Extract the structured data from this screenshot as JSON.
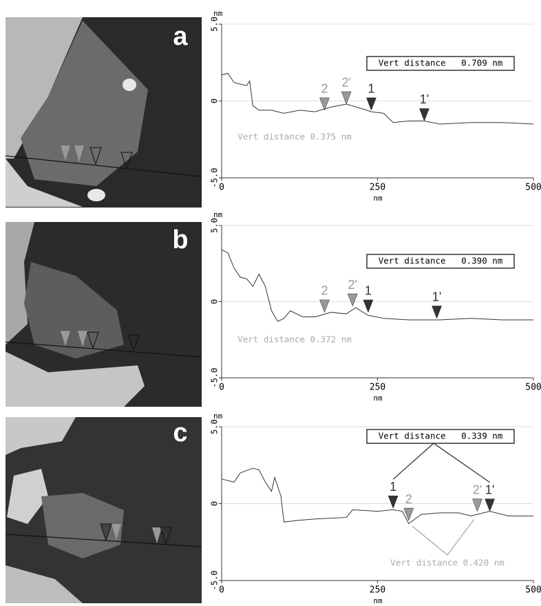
{
  "image_labels": [
    "a",
    "b",
    "c"
  ],
  "chart_data": [
    {
      "type": "line",
      "x_label": "nm",
      "y_label": "nm",
      "xlim": [
        0,
        500
      ],
      "ylim": [
        -5,
        5
      ],
      "xticks": [
        0,
        250,
        500
      ],
      "yticks": [
        {
          "value": -5,
          "label": "-5.0"
        },
        0,
        {
          "value": 5,
          "label": "5.0"
        }
      ],
      "grid": true,
      "color": "#333333",
      "x": [
        0,
        10,
        20,
        30,
        40,
        45,
        50,
        60,
        80,
        100,
        125,
        150,
        175,
        200,
        225,
        240,
        260,
        275,
        300,
        325,
        350,
        400,
        450,
        500
      ],
      "values": [
        1.7,
        1.8,
        1.2,
        1.1,
        1.0,
        1.3,
        -0.3,
        -0.6,
        -0.6,
        -0.8,
        -0.6,
        -0.7,
        -0.4,
        -0.2,
        -0.5,
        -0.7,
        -0.8,
        -1.4,
        -1.3,
        -1.3,
        -1.5,
        -1.4,
        -1.4,
        -1.5
      ],
      "markers": [
        {
          "label": "2",
          "x": 165,
          "y": -0.6,
          "color": "#999999"
        },
        {
          "label": "2'",
          "x": 200,
          "y": -0.2,
          "color": "#999999"
        },
        {
          "label": "1",
          "x": 240,
          "y": -0.6,
          "color": "#333333"
        },
        {
          "label": "1'",
          "x": 325,
          "y": -1.3,
          "color": "#333333"
        }
      ],
      "annotations": [
        "Vert distance   0.709 nm",
        "Vert distance 0.375 nm"
      ]
    },
    {
      "type": "line",
      "x_label": "nm",
      "y_label": "nm",
      "xlim": [
        0,
        500
      ],
      "ylim": [
        -5,
        5
      ],
      "xticks": [
        0,
        250,
        500
      ],
      "yticks": [
        {
          "value": -5,
          "label": "-5.0"
        },
        0,
        {
          "value": 5,
          "label": "5.0"
        }
      ],
      "grid": true,
      "color": "#333333",
      "x": [
        0,
        10,
        20,
        30,
        40,
        50,
        60,
        70,
        80,
        90,
        100,
        110,
        130,
        150,
        175,
        200,
        215,
        235,
        260,
        300,
        350,
        400,
        450,
        500
      ],
      "values": [
        3.4,
        3.2,
        2.2,
        1.6,
        1.5,
        1.0,
        1.8,
        1.0,
        -0.6,
        -1.3,
        -1.1,
        -0.6,
        -1.0,
        -1.0,
        -0.7,
        -0.8,
        -0.4,
        -0.9,
        -1.1,
        -1.2,
        -1.2,
        -1.1,
        -1.2,
        -1.2
      ],
      "markers": [
        {
          "label": "2",
          "x": 165,
          "y": -0.7,
          "color": "#999999"
        },
        {
          "label": "2'",
          "x": 210,
          "y": -0.3,
          "color": "#999999"
        },
        {
          "label": "1",
          "x": 235,
          "y": -0.7,
          "color": "#333333"
        },
        {
          "label": "1'",
          "x": 345,
          "y": -1.1,
          "color": "#333333"
        }
      ],
      "annotations": [
        "Vert distance   0.390 nm",
        "Vert distance 0.372 nm"
      ]
    },
    {
      "type": "line",
      "x_label": "nm",
      "y_label": "nm",
      "xlim": [
        0,
        500
      ],
      "ylim": [
        -5,
        5
      ],
      "xticks": [
        0,
        250,
        500
      ],
      "yticks": [
        {
          "value": -5,
          "label": "-5.0"
        },
        0,
        {
          "value": 5,
          "label": "5.0"
        }
      ],
      "grid": true,
      "color": "#333333",
      "x": [
        0,
        20,
        30,
        50,
        60,
        70,
        80,
        85,
        95,
        100,
        120,
        150,
        200,
        210,
        250,
        275,
        290,
        300,
        320,
        350,
        380,
        400,
        430,
        460,
        500
      ],
      "values": [
        1.6,
        1.4,
        2.0,
        2.3,
        2.2,
        1.4,
        0.8,
        1.7,
        0.5,
        -1.2,
        -1.1,
        -1.0,
        -0.9,
        -0.4,
        -0.5,
        -0.4,
        -0.5,
        -1.3,
        -0.7,
        -0.6,
        -0.6,
        -0.8,
        -0.5,
        -0.8,
        -0.8
      ],
      "markers": [
        {
          "label": "1",
          "x": 275,
          "y": -0.3,
          "color": "#333333"
        },
        {
          "label": "2",
          "x": 300,
          "y": -1.1,
          "color": "#999999"
        },
        {
          "label": "2'",
          "x": 410,
          "y": -0.5,
          "color": "#999999"
        },
        {
          "label": "1'",
          "x": 430,
          "y": -0.5,
          "color": "#333333"
        }
      ],
      "annotations": [
        "Vert distance   0.339 nm",
        "Vert distance 0.420 nm"
      ]
    }
  ]
}
